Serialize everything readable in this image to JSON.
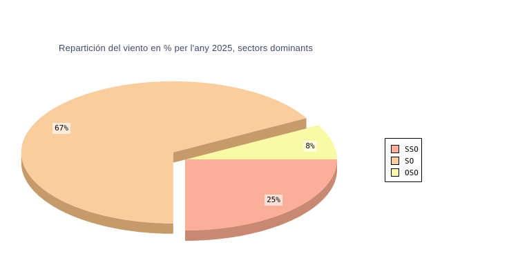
{
  "title": {
    "text": "Repartición del viento en % per l'any 2025, sectors dominants",
    "color": "#3E4A6A"
  },
  "chart_data": {
    "type": "pie",
    "style": "3d-exploded",
    "title": "Repartición del viento en % per l'any 2025, sectors dominants",
    "unit": "%",
    "background": "#FFFFFF",
    "legend_position": "right",
    "series": [
      {
        "label": "SSO",
        "value": 25,
        "percent_label": "25%",
        "color": "#FBAE98",
        "side_color": "#C88973",
        "exploded": false
      },
      {
        "label": "SO",
        "value": 67,
        "percent_label": "67%",
        "color": "#F9CD9E",
        "side_color": "#C59B6B",
        "exploded": true
      },
      {
        "label": "OSO",
        "value": 8,
        "percent_label": "8%",
        "color": "#FAFAA6",
        "exploded": false
      }
    ]
  },
  "legend": {
    "items": [
      {
        "label": "SSO",
        "color": "#FBAE98"
      },
      {
        "label": "SO",
        "color": "#F9CD9E"
      },
      {
        "label": "OSO",
        "color": "#FAFAA6"
      }
    ]
  }
}
